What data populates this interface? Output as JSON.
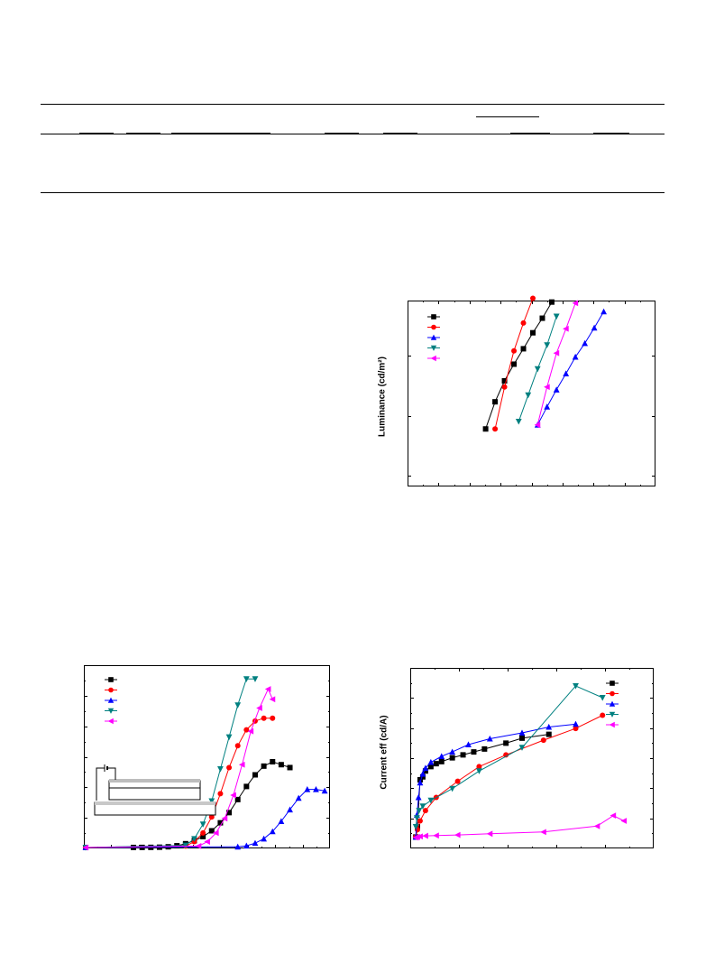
{
  "chart_data": [
    {
      "type": "line",
      "ylabel": "Luminance (cd/m²)",
      "yscale": "log",
      "legend": "top-left",
      "series": [
        {
          "color": "#000000",
          "marker": "square",
          "x": [
            0.3,
            0.34,
            0.38,
            0.42,
            0.46,
            0.5,
            0.54,
            0.58,
            0.62,
            0.66,
            0.7,
            0.74
          ],
          "y": [
            0.06,
            0.17,
            0.38,
            0.72,
            1.3,
            2.4,
            4.2,
            7.8,
            13.5,
            20,
            22,
            14
          ]
        },
        {
          "color": "#ff0000",
          "marker": "circle",
          "x": [
            0.34,
            0.38,
            0.42,
            0.46,
            0.5,
            0.54,
            0.58,
            0.62,
            0.66
          ],
          "y": [
            0.06,
            0.3,
            1.2,
            3.5,
            9,
            21,
            30,
            32,
            28
          ]
        },
        {
          "color": "#0000ff",
          "marker": "triangle-up",
          "x": [
            0.52,
            0.56,
            0.6,
            0.64,
            0.68,
            0.72,
            0.76,
            0.8,
            0.84,
            0.88,
            0.92,
            0.96
          ],
          "y": [
            0.07,
            0.14,
            0.27,
            0.5,
            0.95,
            1.6,
            2.9,
            5.4,
            9.5,
            16,
            20,
            15
          ]
        },
        {
          "color": "#008080",
          "marker": "triangle-down",
          "x": [
            0.44,
            0.48,
            0.52,
            0.56,
            0.6,
            0.64,
            0.68,
            0.72
          ],
          "y": [
            0.08,
            0.22,
            0.6,
            1.5,
            4.5,
            12,
            26,
            29
          ]
        },
        {
          "color": "#ff00ff",
          "marker": "triangle-left",
          "x": [
            0.52,
            0.56,
            0.6,
            0.64,
            0.68,
            0.72
          ],
          "y": [
            0.07,
            0.3,
            1.1,
            2.8,
            7.5,
            14
          ]
        }
      ]
    },
    {
      "type": "line",
      "legend": "top-left",
      "inset": "device schematic",
      "series": [
        {
          "color": "#000000",
          "marker": "square",
          "x": [
            0.0,
            0.22,
            0.26,
            0.3,
            0.34,
            0.38,
            0.42,
            0.46,
            0.5,
            0.54,
            0.58,
            0.62,
            0.66,
            0.7,
            0.74,
            0.78,
            0.82,
            0.86,
            0.9,
            0.94
          ],
          "y": [
            0,
            0.003,
            0.006,
            0.01,
            0.02,
            0.05,
            0.12,
            0.26,
            0.47,
            0.75,
            1.15,
            1.7,
            2.4,
            3.3,
            4.2,
            5.0,
            5.6,
            5.9,
            5.7,
            5.5
          ]
        },
        {
          "color": "#ff0000",
          "marker": "circle",
          "x": [
            0.0,
            0.46,
            0.5,
            0.54,
            0.58,
            0.62,
            0.66,
            0.7,
            0.74,
            0.78,
            0.82,
            0.86
          ],
          "y": [
            0,
            0.1,
            0.4,
            1.0,
            2.1,
            3.7,
            5.5,
            7.0,
            8.1,
            8.7,
            8.9,
            8.9
          ]
        },
        {
          "color": "#0000ff",
          "marker": "triangle-up",
          "x": [
            0.0,
            0.7,
            0.74,
            0.78,
            0.82,
            0.86,
            0.9,
            0.94,
            0.98,
            1.02,
            1.06,
            1.1
          ],
          "y": [
            0,
            0.05,
            0.12,
            0.3,
            0.6,
            1.1,
            1.8,
            2.6,
            3.4,
            4.0,
            4.0,
            3.9
          ]
        },
        {
          "color": "#008080",
          "marker": "triangle-down",
          "x": [
            0.0,
            0.46,
            0.5,
            0.54,
            0.58,
            0.62,
            0.66,
            0.7,
            0.74,
            0.78
          ],
          "y": [
            0,
            0.15,
            0.6,
            1.6,
            3.2,
            5.4,
            7.6,
            9.8,
            11.6,
            11.6
          ]
        },
        {
          "color": "#ff00ff",
          "marker": "triangle-left",
          "x": [
            0.0,
            0.52,
            0.56,
            0.6,
            0.64,
            0.68,
            0.72,
            0.76,
            0.8,
            0.84,
            0.86
          ],
          "y": [
            0,
            0.1,
            0.4,
            1.0,
            2.0,
            3.6,
            5.7,
            8.0,
            9.6,
            10.9,
            10.2
          ]
        }
      ]
    },
    {
      "type": "line",
      "ylabel": "Current eff (cd/A)",
      "legend": "top-right",
      "series": [
        {
          "color": "#000000",
          "marker": "square",
          "x": [
            0.2,
            0.5,
            1,
            1.5,
            2,
            3,
            4,
            5,
            7,
            9,
            11,
            13,
            17,
            20,
            25
          ],
          "y": [
            0.05,
            0.4,
            2.0,
            2.1,
            2.3,
            2.45,
            2.55,
            2.62,
            2.75,
            2.85,
            2.95,
            3.05,
            3.25,
            3.42,
            3.55
          ]
        },
        {
          "color": "#ff0000",
          "marker": "circle",
          "x": [
            0.2,
            0.5,
            1,
            2,
            4,
            8,
            12,
            17,
            24,
            30,
            35
          ],
          "y": [
            0.05,
            0.3,
            0.6,
            0.95,
            1.4,
            1.95,
            2.45,
            2.85,
            3.35,
            3.75,
            4.2
          ]
        },
        {
          "color": "#0000ff",
          "marker": "triangle-up",
          "x": [
            0.2,
            0.4,
            0.7,
            1,
            1.5,
            2,
            3,
            5,
            7,
            10,
            14,
            20,
            25,
            30
          ],
          "y": [
            0.05,
            0.8,
            1.4,
            1.9,
            2.2,
            2.4,
            2.6,
            2.8,
            2.95,
            3.2,
            3.4,
            3.6,
            3.8,
            3.9
          ]
        },
        {
          "color": "#008080",
          "marker": "triangle-down",
          "x": [
            0.2,
            0.4,
            0.8,
            1.5,
            3,
            7,
            12,
            20,
            30,
            35
          ],
          "y": [
            0.4,
            0.7,
            0.95,
            1.1,
            1.3,
            1.7,
            2.3,
            3.1,
            5.2,
            4.8
          ]
        },
        {
          "color": "#ff00ff",
          "marker": "triangle-left",
          "x": [
            0.2,
            0.5,
            1,
            2,
            4,
            8,
            14,
            24,
            34,
            37,
            39
          ],
          "y": [
            0.03,
            0.05,
            0.07,
            0.09,
            0.1,
            0.12,
            0.16,
            0.22,
            0.42,
            0.78,
            0.6
          ]
        }
      ]
    }
  ]
}
